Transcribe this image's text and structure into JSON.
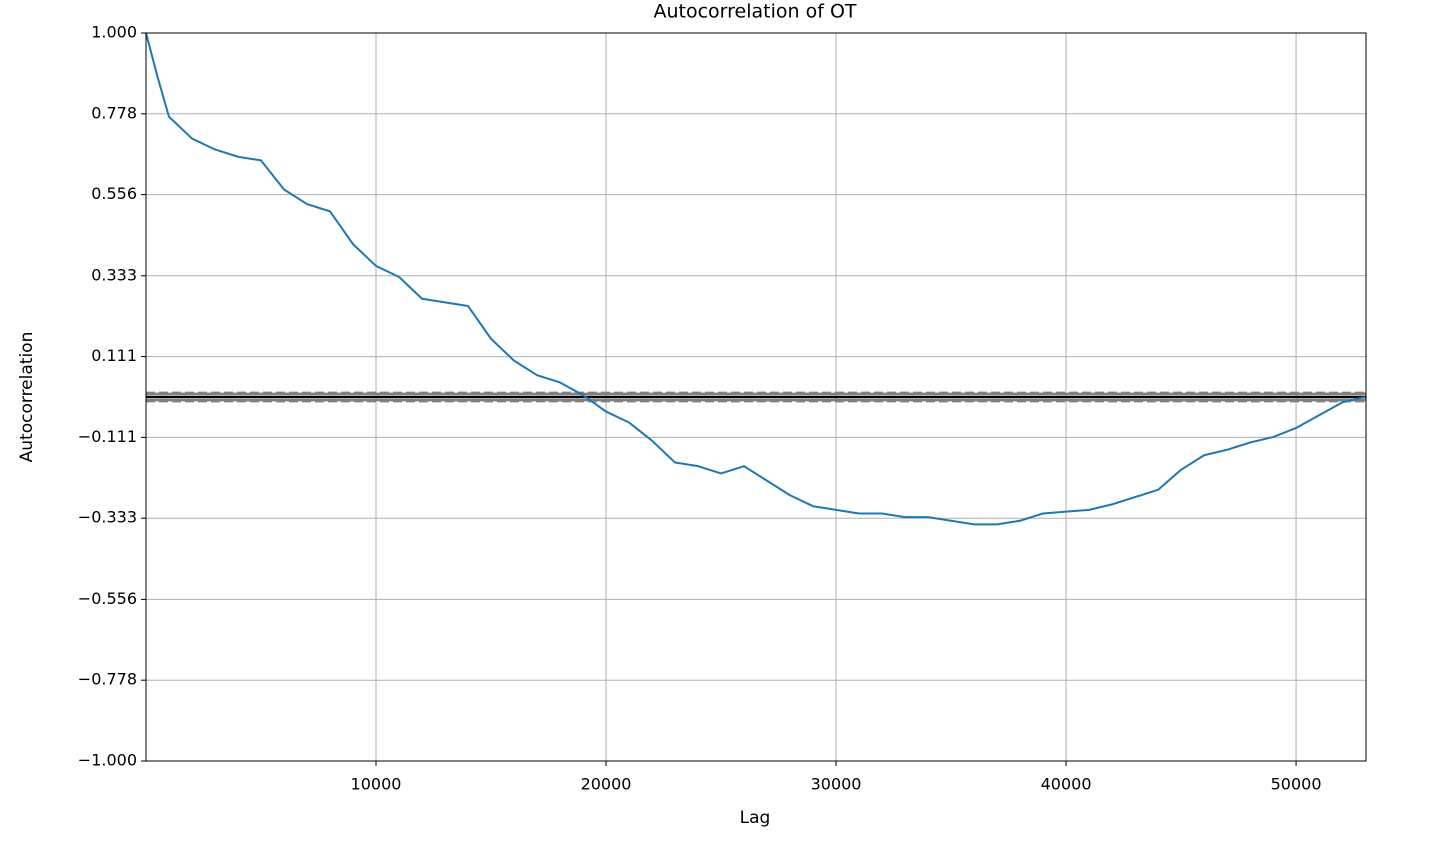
{
  "chart_data": {
    "type": "line",
    "title": "Autocorrelation of OT",
    "x_label": "Lag",
    "y_label": "Autocorrelation",
    "x": [
      1,
      500,
      1000,
      2000,
      3000,
      4000,
      5000,
      6000,
      7000,
      8000,
      9000,
      10000,
      11000,
      12000,
      13000,
      14000,
      15000,
      16000,
      17000,
      18000,
      19000,
      20000,
      21000,
      22000,
      23000,
      24000,
      25000,
      26000,
      27000,
      28000,
      29000,
      30000,
      31000,
      32000,
      33000,
      34000,
      35000,
      36000,
      37000,
      38000,
      39000,
      40000,
      41000,
      42000,
      43000,
      44000,
      45000,
      46000,
      47000,
      48000,
      49000,
      50000,
      51000,
      52000,
      53000
    ],
    "series": [
      {
        "name": "Autocorrelation",
        "color": "#1f77b4",
        "values": [
          1.0,
          0.88,
          0.77,
          0.71,
          0.68,
          0.66,
          0.65,
          0.57,
          0.53,
          0.51,
          0.42,
          0.36,
          0.33,
          0.27,
          0.26,
          0.25,
          0.16,
          0.1,
          0.06,
          0.04,
          0.005,
          -0.04,
          -0.07,
          -0.12,
          -0.18,
          -0.19,
          -0.21,
          -0.19,
          -0.23,
          -0.27,
          -0.3,
          -0.31,
          -0.32,
          -0.32,
          -0.33,
          -0.33,
          -0.34,
          -0.35,
          -0.35,
          -0.34,
          -0.32,
          -0.315,
          -0.31,
          -0.295,
          -0.275,
          -0.255,
          -0.2,
          -0.16,
          -0.145,
          -0.125,
          -0.11,
          -0.085,
          -0.05,
          -0.015,
          0.0
        ]
      }
    ],
    "reference_lines": [
      {
        "value": 0.0112,
        "color": "grey",
        "dash": true
      },
      {
        "value": 0.0085,
        "color": "grey",
        "dash": false
      },
      {
        "value": 0,
        "color": "black",
        "dash": false
      },
      {
        "value": -0.0085,
        "color": "grey",
        "dash": false
      },
      {
        "value": -0.0112,
        "color": "grey",
        "dash": true
      }
    ],
    "xlim": [
      1,
      53040
    ],
    "xticks": [
      10000,
      20000,
      30000,
      40000,
      50000
    ],
    "ylim": [
      -1,
      1
    ],
    "yticks": [
      {
        "value": -1,
        "label": "−1.000"
      },
      {
        "value": -0.778,
        "label": "−0.778"
      },
      {
        "value": -0.556,
        "label": "−0.556"
      },
      {
        "value": -0.333,
        "label": "−0.333"
      },
      {
        "value": -0.111,
        "label": "−0.111"
      },
      {
        "value": 0.111,
        "label": "0.111"
      },
      {
        "value": 0.333,
        "label": "0.333"
      },
      {
        "value": 0.556,
        "label": "0.556"
      },
      {
        "value": 0.778,
        "label": "0.778"
      },
      {
        "value": 1,
        "label": "1.000"
      }
    ],
    "grid": true
  }
}
